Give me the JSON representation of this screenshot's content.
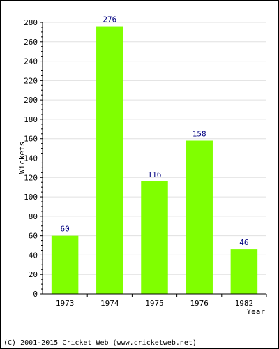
{
  "chart_data": {
    "type": "bar",
    "categories": [
      "1973",
      "1974",
      "1975",
      "1976",
      "1982"
    ],
    "values": [
      60,
      276,
      116,
      158,
      46
    ],
    "data_labels": [
      "60",
      "276",
      "116",
      "158",
      "46"
    ],
    "xlabel": "Year",
    "ylabel": "Wickets",
    "ylim": [
      0,
      280
    ],
    "yticks": [
      0,
      20,
      40,
      60,
      80,
      100,
      120,
      140,
      160,
      180,
      200,
      220,
      240,
      260,
      280
    ],
    "grid": true,
    "bar_color": "#80ff00",
    "label_color": "#000080"
  },
  "footer": {
    "copyright": "(C) 2001-2015 Cricket Web (www.cricketweb.net)"
  }
}
